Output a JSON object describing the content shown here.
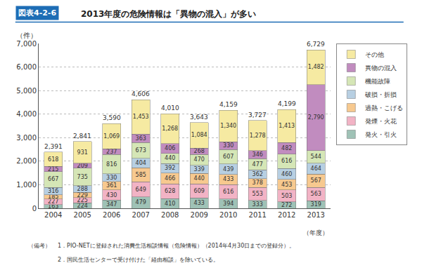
{
  "chart_data": {
    "type": "bar",
    "stacked": true,
    "badge": "図表4-2-6",
    "title": "2013年度の危険情報は「異物の混入」が多い",
    "y_label": "（件）",
    "x_label": "（年度）",
    "note_label": "（備考）",
    "notes": [
      "1．PIO-NETに登録された消費生活相談情報（危険情報）（2014年4月30日までの登録分）。",
      "2．国民生活センターで受け付けた「経由相談」を除いている。"
    ],
    "categories": [
      "2004",
      "2005",
      "2006",
      "2007",
      "2008",
      "2009",
      "2010",
      "2011",
      "2012",
      "2013"
    ],
    "series": [
      {
        "name": "発火・引火",
        "color": "#9fc2b6",
        "values": [
          163,
          224,
          347,
          479,
          410,
          433,
          394,
          333,
          272,
          319
        ]
      },
      {
        "name": "発煙・火花",
        "color": "#f2b3c5",
        "values": [
          227,
          225,
          430,
          649,
          628,
          609,
          616,
          553,
          503,
          563
        ]
      },
      {
        "name": "過熱・こげる",
        "color": "#f7c98f",
        "values": [
          185,
          229,
          361,
          585,
          466,
          440,
          433,
          378,
          453,
          567
        ]
      },
      {
        "name": "破損・折損",
        "color": "#b7cfe2",
        "values": [
          316,
          288,
          330,
          404,
          392,
          339,
          439,
          362,
          460,
          464
        ]
      },
      {
        "name": "機能故障",
        "color": "#d5e6b6",
        "values": [
          667,
          735,
          816,
          673,
          440,
          470,
          607,
          477,
          616,
          544
        ]
      },
      {
        "name": "異物の混入",
        "color": "#c18cbf",
        "values": [
          215,
          209,
          237,
          363,
          406,
          268,
          330,
          346,
          482,
          2790
        ],
        "value_labels": [
          "215",
          "209",
          "237",
          "363",
          "406",
          "268",
          "330",
          "346",
          "482",
          "2,790"
        ]
      },
      {
        "name": "その他",
        "color": "#f6eaa2",
        "values": [
          618,
          931,
          1069,
          1453,
          1268,
          1084,
          1340,
          1278,
          1413,
          1482
        ],
        "value_labels": [
          "618",
          "931",
          "1,069",
          "1,453",
          "1,268",
          "1,084",
          "1,340",
          "1,278",
          "1,413",
          "1,482"
        ]
      }
    ],
    "totals": [
      2391,
      2841,
      3590,
      4606,
      4010,
      3643,
      4159,
      3727,
      4199,
      6729
    ],
    "total_labels": [
      "2,391",
      "2,841",
      "3,590",
      "4,606",
      "4,010",
      "3,643",
      "4,159",
      "3,727",
      "4,199",
      "6,729"
    ],
    "ylim": [
      0,
      7000
    ],
    "yticks": [
      0,
      {
        "value": 1000,
        "label": "1,000"
      },
      {
        "value": 2000,
        "label": "2,000"
      },
      {
        "value": 3000,
        "label": "3,000"
      },
      {
        "value": 4000,
        "label": "4,000"
      },
      {
        "value": 5000,
        "label": "5,000"
      },
      {
        "value": 6000,
        "label": "6,000"
      },
      {
        "value": 7000,
        "label": "7,000"
      }
    ],
    "grid": true,
    "legend": "right",
    "data_labels": true
  }
}
